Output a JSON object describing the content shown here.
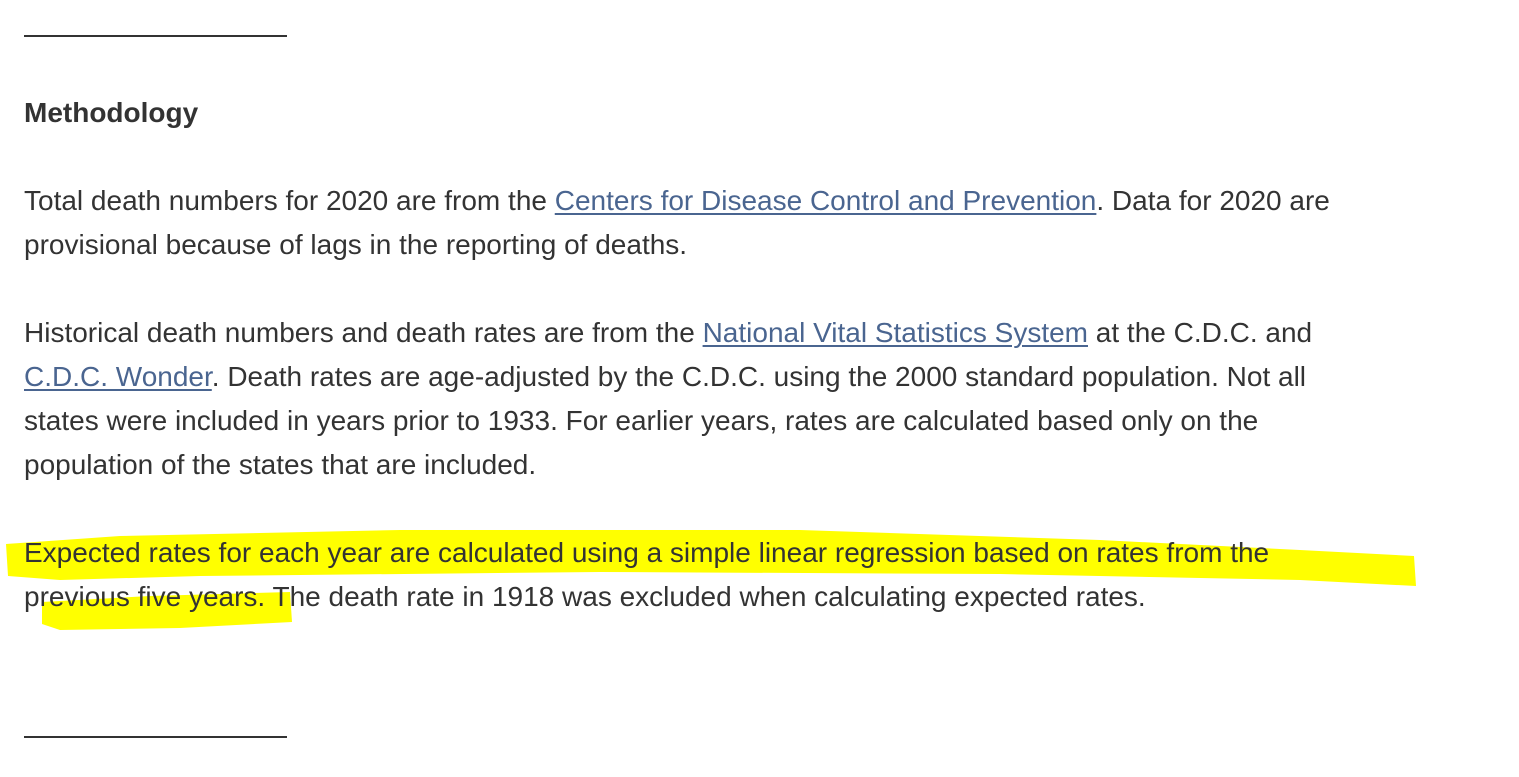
{
  "heading": "Methodology",
  "highlight_color": "#ffff00",
  "link_color": "#4a6590",
  "paragraph1": {
    "before_link": "Total death numbers for 2020 are from the ",
    "link": "Centers for Disease Control and Prevention",
    "after_link": ". Data for 2020 are",
    "line2": "provisional because of lags in the reporting of deaths."
  },
  "paragraph2": {
    "before_link1": "Historical death numbers and death rates are from the ",
    "link1": "National Vital Statistics System",
    "after_link1": " at the C.D.C. and",
    "link2": "C.D.C. Wonder",
    "after_link2": ". Death rates are age-adjusted by the C.D.C. using the 2000 standard population. Not all",
    "line3": "states were included in years prior to 1933. For earlier years, rates are calculated based only on the",
    "line4": "population of the states that are included."
  },
  "paragraph3": {
    "line1": "Expected rates for each year are calculated using a simple linear regression based on rates from the",
    "line2_highlighted": "previous five years.",
    "line2_rest": " The death rate in 1918 was excluded when calculating expected rates."
  }
}
